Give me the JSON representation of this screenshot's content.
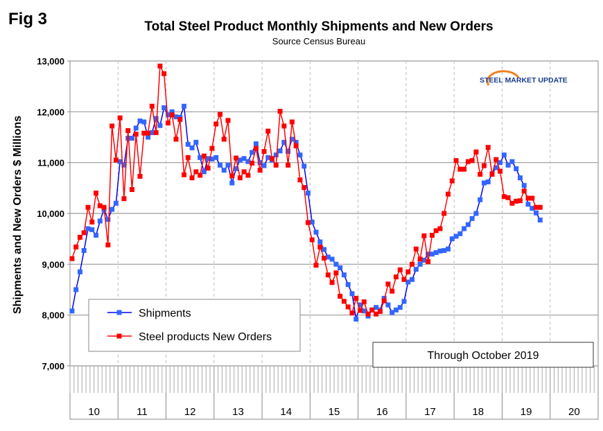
{
  "chart_data": {
    "type": "line",
    "fig_label": "Fig 3",
    "title": "Total Steel Product Monthly Shipments and New Orders",
    "subtitle": "Source Census Bureau",
    "ylabel": "Shipments and New Orders $ Millions",
    "xlabel": "",
    "ylim": [
      7000,
      13000
    ],
    "yticks": [
      "7,000",
      "8,000",
      "9,000",
      "10,000",
      "11,000",
      "12,000",
      "13,000"
    ],
    "ytick_values": [
      7000,
      8000,
      9000,
      10000,
      11000,
      12000,
      13000
    ],
    "xtick_labels": [
      "10",
      "11",
      "12",
      "13",
      "14",
      "15",
      "16",
      "17",
      "18",
      "19",
      "20"
    ],
    "x_start": "2010-01",
    "x_end": "2019-10",
    "x_unit": "month",
    "grid": "horizontal solid, vertical dashed at years",
    "legend_placement": "lower-left",
    "annotation": "Through October 2019",
    "logo_text": "STEEL MARKET UPDATE",
    "series": [
      {
        "name": "Shipments",
        "color": "#3366ff",
        "line_color": "#0000ee",
        "values": [
          8080,
          8500,
          8850,
          9270,
          9700,
          9680,
          9570,
          9850,
          10080,
          9880,
          10080,
          10200,
          11020,
          10950,
          11480,
          11480,
          11680,
          11820,
          11800,
          11500,
          11590,
          11870,
          11730,
          12080,
          11940,
          12000,
          11900,
          11890,
          12110,
          11360,
          11290,
          11400,
          11100,
          10820,
          11080,
          11070,
          11100,
          10950,
          10850,
          10950,
          10600,
          10880,
          11050,
          11080,
          11020,
          11200,
          11370,
          11000,
          10940,
          11100,
          11050,
          11150,
          11230,
          11400,
          11220,
          11460,
          11400,
          11150,
          10930,
          10400,
          9830,
          9630,
          9440,
          9290,
          9140,
          9100,
          9000,
          8930,
          8790,
          8600,
          8420,
          7920,
          8200,
          8080,
          7980,
          8100,
          8150,
          8100,
          8330,
          8200,
          8050,
          8100,
          8150,
          8270,
          8650,
          8700,
          8900,
          9000,
          9080,
          9200,
          9200,
          9230,
          9260,
          9270,
          9300,
          9500,
          9550,
          9600,
          9700,
          9780,
          9900,
          10000,
          10270,
          10600,
          10620,
          10780,
          10900,
          11000,
          11150,
          10950,
          11020,
          10880,
          10700,
          10550,
          10180,
          10100,
          10010,
          9870
        ]
      },
      {
        "name": "Steel products New Orders",
        "color": "#ff0000",
        "line_color": "#ff0000",
        "values": [
          9110,
          9340,
          9530,
          9620,
          10120,
          9830,
          10400,
          10150,
          10120,
          9380,
          11720,
          11050,
          11880,
          10290,
          11630,
          10470,
          11560,
          10730,
          11580,
          11580,
          12110,
          11590,
          12900,
          12750,
          11780,
          11940,
          11460,
          11850,
          10760,
          11100,
          10700,
          10820,
          10750,
          11130,
          10890,
          11280,
          11760,
          11950,
          11460,
          11830,
          10740,
          11090,
          10700,
          10820,
          10750,
          10990,
          11280,
          10850,
          11220,
          11620,
          11080,
          10950,
          12010,
          11720,
          10950,
          11800,
          11330,
          10660,
          10510,
          9820,
          9480,
          8980,
          9340,
          9120,
          8790,
          8640,
          8830,
          8370,
          8270,
          8160,
          8040,
          8330,
          8090,
          8260,
          8020,
          8100,
          8020,
          8070,
          8280,
          8610,
          8470,
          8750,
          8890,
          8700,
          8850,
          9000,
          9300,
          9100,
          9560,
          9050,
          9570,
          9660,
          9700,
          10000,
          10380,
          10640,
          11040,
          10870,
          10870,
          11020,
          11040,
          11210,
          10770,
          10940,
          11300,
          10770,
          11060,
          10830,
          10330,
          10310,
          10200,
          10240,
          10250,
          10440,
          10300,
          10300,
          10120,
          10120
        ]
      }
    ]
  }
}
